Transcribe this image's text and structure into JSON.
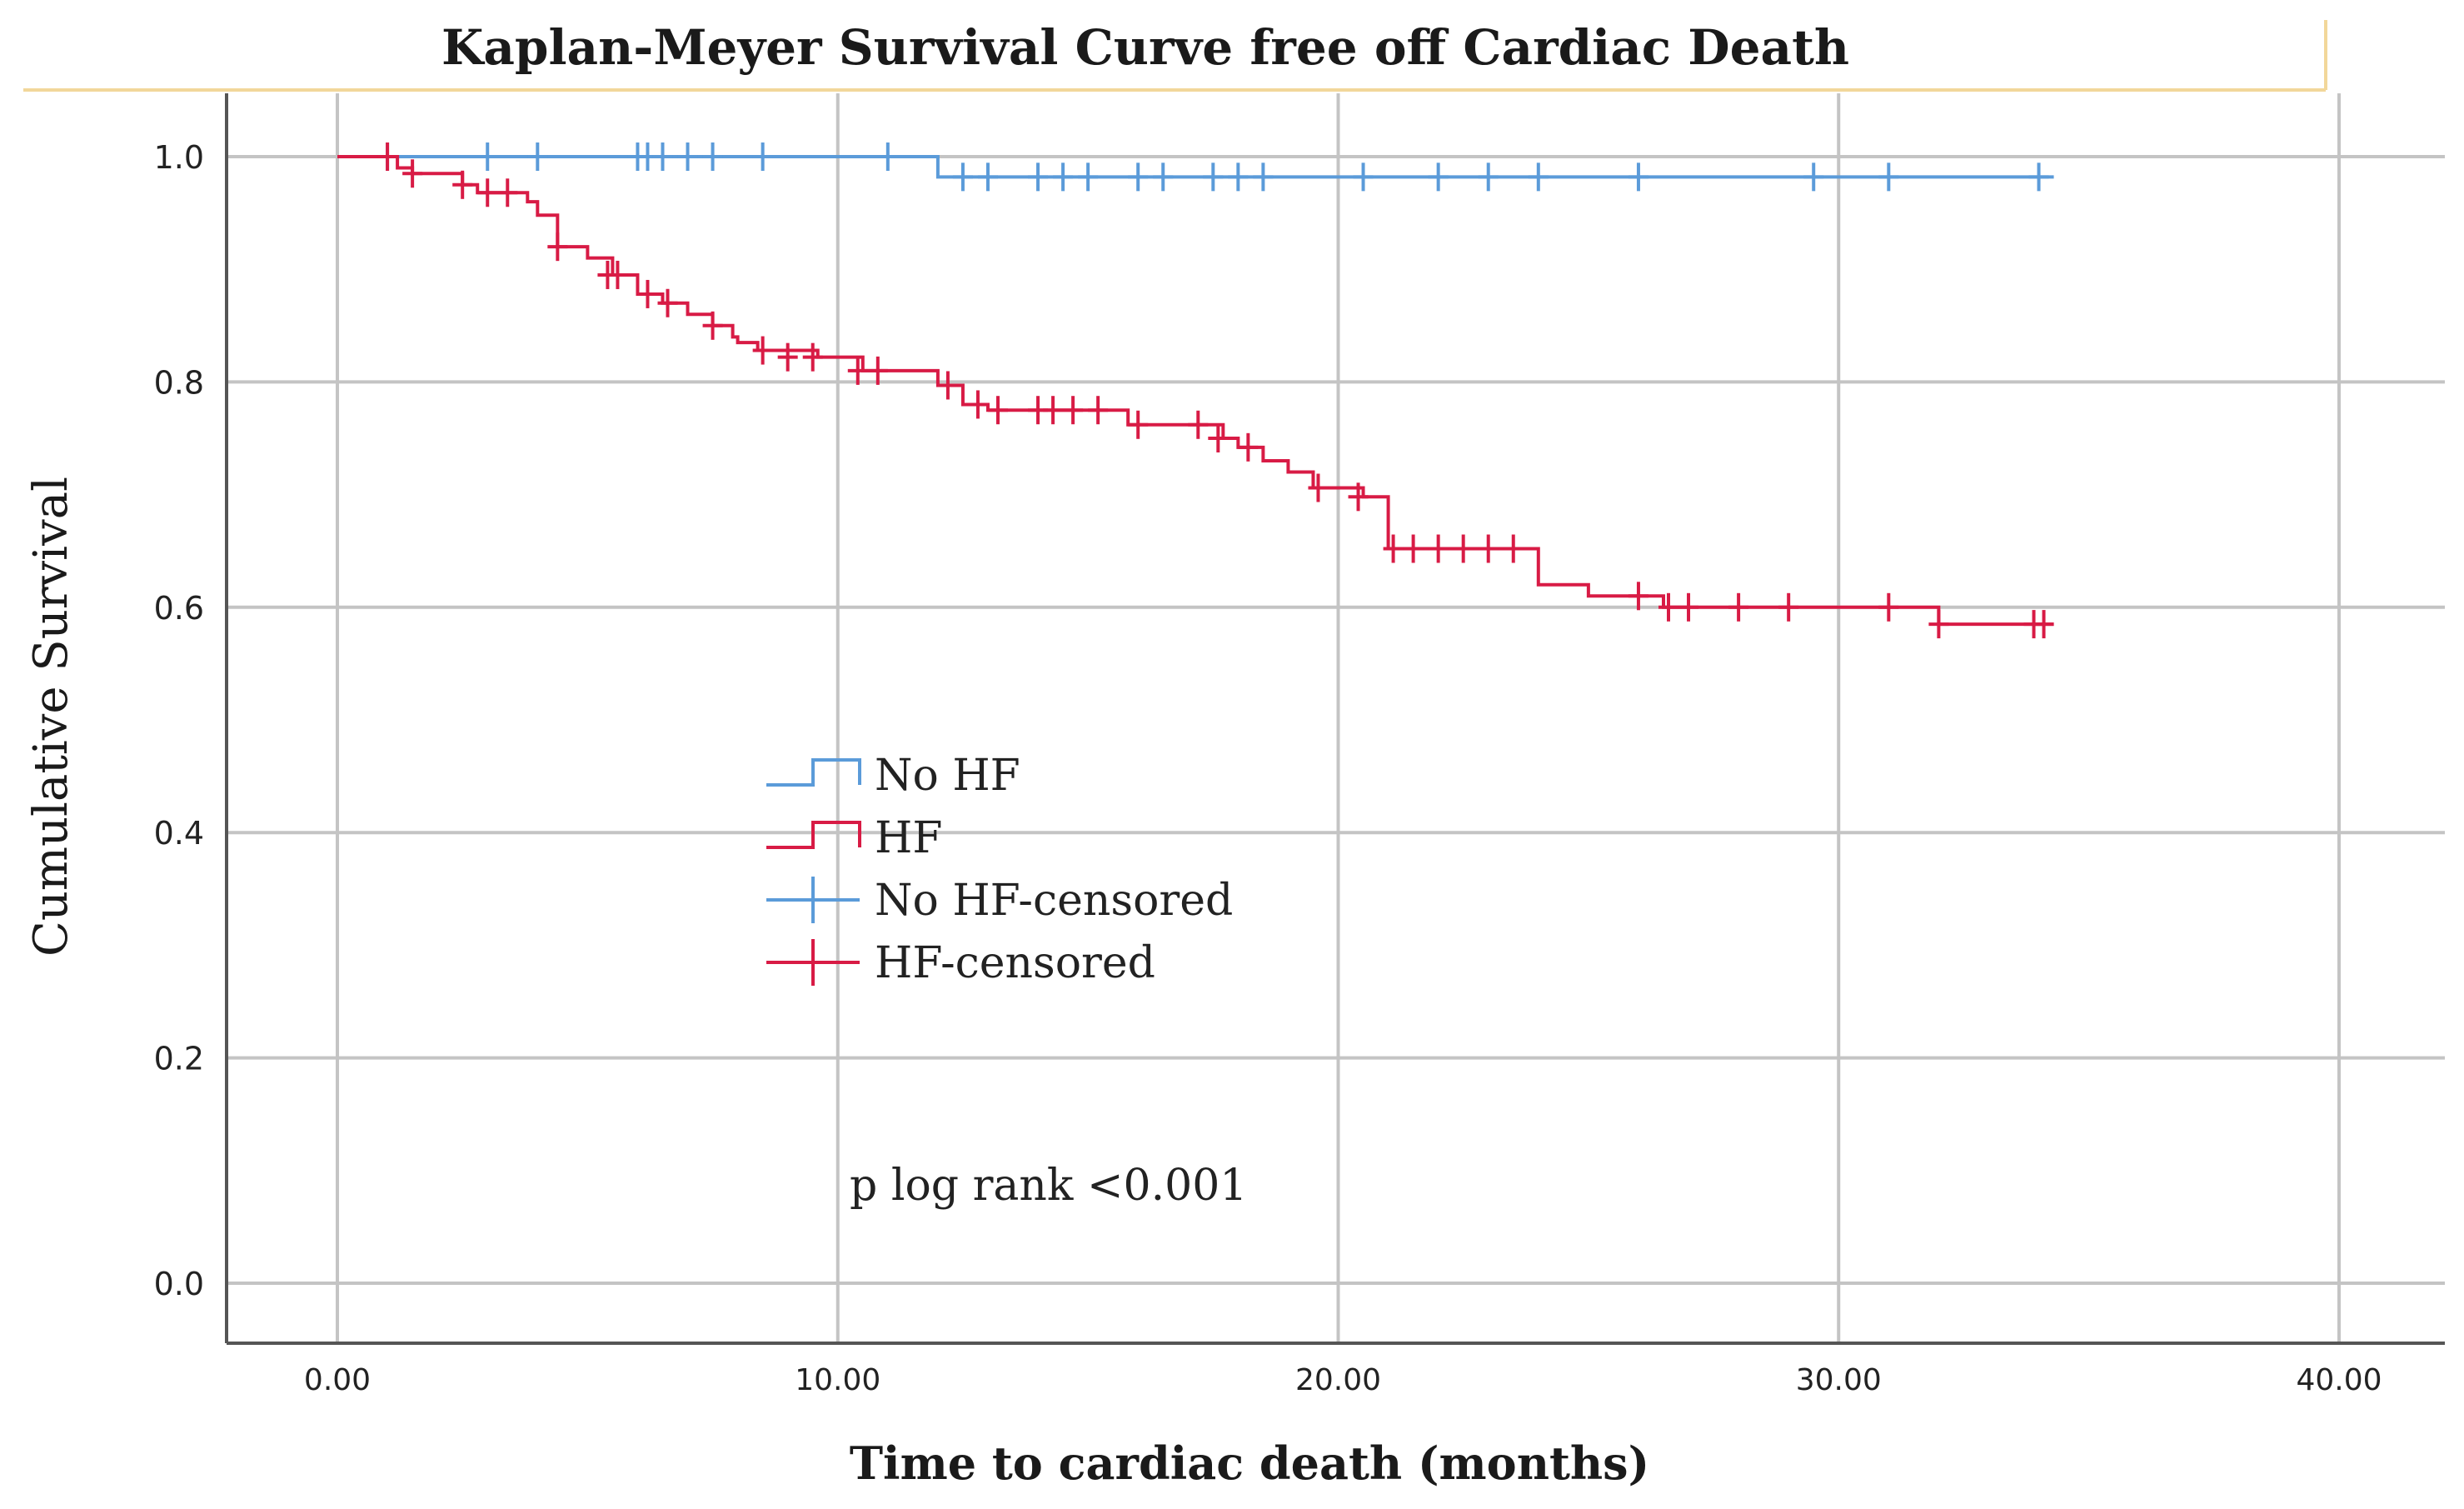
{
  "chart_data": {
    "type": "line",
    "subtype": "kaplan-meier-step",
    "title": "Kaplan-Meyer Survival Curve free off Cardiac Death",
    "xlabel": "Time to cardiac death (months)",
    "ylabel": "Cumulative Survival",
    "xlim": [
      0,
      40
    ],
    "ylim": [
      0,
      1.0
    ],
    "x_ticks": [
      0,
      10,
      20,
      30,
      40
    ],
    "x_tick_labels": [
      "0.00",
      "10.00",
      "20.00",
      "30.00",
      "40.00"
    ],
    "y_ticks": [
      0,
      0.2,
      0.4,
      0.6,
      0.8,
      1.0
    ],
    "y_tick_labels": [
      "0.0",
      "0.2",
      "0.4",
      "0.6",
      "0.8",
      "1.0"
    ],
    "grid": true,
    "legend_position": "center-left",
    "annotation": "p log rank <0.001",
    "legend": [
      {
        "label": "No HF",
        "kind": "step",
        "color": "#5b9bd9"
      },
      {
        "label": "HF",
        "kind": "step",
        "color": "#d81b45"
      },
      {
        "label": "No HF-censored",
        "kind": "censor",
        "color": "#5b9bd9"
      },
      {
        "label": "HF-censored",
        "kind": "censor",
        "color": "#d81b45"
      }
    ],
    "series": [
      {
        "name": "No HF",
        "color": "#5b9bd9",
        "steps": [
          [
            0,
            1.0
          ],
          [
            12.0,
            0.982
          ],
          [
            34.3,
            0.982
          ]
        ],
        "censored": [
          [
            1.0,
            1.0
          ],
          [
            3.0,
            1.0
          ],
          [
            4.0,
            1.0
          ],
          [
            6.0,
            1.0
          ],
          [
            6.2,
            1.0
          ],
          [
            6.5,
            1.0
          ],
          [
            7.0,
            1.0
          ],
          [
            7.5,
            1.0
          ],
          [
            8.5,
            1.0
          ],
          [
            11.0,
            1.0
          ],
          [
            12.5,
            0.982
          ],
          [
            13.0,
            0.982
          ],
          [
            14.0,
            0.982
          ],
          [
            14.5,
            0.982
          ],
          [
            15.0,
            0.982
          ],
          [
            16.0,
            0.982
          ],
          [
            16.5,
            0.982
          ],
          [
            17.5,
            0.982
          ],
          [
            18.0,
            0.982
          ],
          [
            18.5,
            0.982
          ],
          [
            20.5,
            0.982
          ],
          [
            22.0,
            0.982
          ],
          [
            23.0,
            0.982
          ],
          [
            24.0,
            0.982
          ],
          [
            26.0,
            0.982
          ],
          [
            29.5,
            0.982
          ],
          [
            31.0,
            0.982
          ],
          [
            34.0,
            0.982
          ]
        ]
      },
      {
        "name": "HF",
        "color": "#d81b45",
        "steps": [
          [
            0,
            1.0
          ],
          [
            1.2,
            0.99
          ],
          [
            1.5,
            0.985
          ],
          [
            2.5,
            0.975
          ],
          [
            2.8,
            0.968
          ],
          [
            3.8,
            0.96
          ],
          [
            4.0,
            0.948
          ],
          [
            4.4,
            0.92
          ],
          [
            5.0,
            0.91
          ],
          [
            5.5,
            0.895
          ],
          [
            6.0,
            0.878
          ],
          [
            6.5,
            0.87
          ],
          [
            7.0,
            0.86
          ],
          [
            7.5,
            0.85
          ],
          [
            7.9,
            0.84
          ],
          [
            8.0,
            0.835
          ],
          [
            8.4,
            0.828
          ],
          [
            9.6,
            0.822
          ],
          [
            10.5,
            0.81
          ],
          [
            12.0,
            0.797
          ],
          [
            12.5,
            0.78
          ],
          [
            13.0,
            0.775
          ],
          [
            15.8,
            0.762
          ],
          [
            17.7,
            0.75
          ],
          [
            18.0,
            0.742
          ],
          [
            18.5,
            0.73
          ],
          [
            19.0,
            0.72
          ],
          [
            19.5,
            0.706
          ],
          [
            20.5,
            0.698
          ],
          [
            21.0,
            0.652
          ],
          [
            24.0,
            0.62
          ],
          [
            25.0,
            0.61
          ],
          [
            26.5,
            0.6
          ],
          [
            32.0,
            0.585
          ],
          [
            34.3,
            0.585
          ]
        ],
        "censored": [
          [
            1.0,
            1.0
          ],
          [
            1.5,
            0.985
          ],
          [
            2.5,
            0.975
          ],
          [
            3.0,
            0.968
          ],
          [
            3.4,
            0.968
          ],
          [
            4.4,
            0.92
          ],
          [
            5.4,
            0.895
          ],
          [
            5.6,
            0.895
          ],
          [
            6.2,
            0.878
          ],
          [
            6.6,
            0.87
          ],
          [
            7.5,
            0.85
          ],
          [
            8.5,
            0.828
          ],
          [
            9.0,
            0.822
          ],
          [
            9.5,
            0.822
          ],
          [
            10.4,
            0.81
          ],
          [
            10.8,
            0.81
          ],
          [
            12.2,
            0.797
          ],
          [
            12.8,
            0.78
          ],
          [
            13.2,
            0.775
          ],
          [
            14.0,
            0.775
          ],
          [
            14.3,
            0.775
          ],
          [
            14.7,
            0.775
          ],
          [
            15.2,
            0.775
          ],
          [
            16.0,
            0.762
          ],
          [
            17.2,
            0.762
          ],
          [
            17.6,
            0.75
          ],
          [
            18.2,
            0.742
          ],
          [
            19.6,
            0.706
          ],
          [
            20.4,
            0.698
          ],
          [
            21.1,
            0.652
          ],
          [
            21.5,
            0.652
          ],
          [
            22.0,
            0.652
          ],
          [
            22.5,
            0.652
          ],
          [
            23.0,
            0.652
          ],
          [
            23.5,
            0.652
          ],
          [
            26.0,
            0.61
          ],
          [
            26.6,
            0.6
          ],
          [
            27.0,
            0.6
          ],
          [
            28.0,
            0.6
          ],
          [
            29.0,
            0.6
          ],
          [
            31.0,
            0.6
          ],
          [
            32.0,
            0.585
          ],
          [
            33.9,
            0.585
          ],
          [
            34.1,
            0.585
          ]
        ]
      }
    ]
  }
}
